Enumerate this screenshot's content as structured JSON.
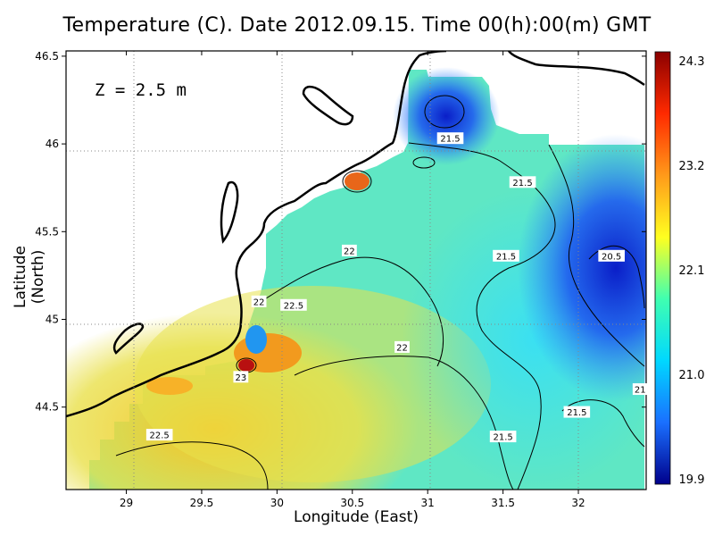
{
  "title": "Temperature (C). Date 2012.09.15. Time 00(h):00(m) GMT",
  "x_axis": {
    "label": "Longitude (East)",
    "ticks": [
      "29",
      "29.5",
      "30",
      "30.5",
      "31",
      "31.5",
      "32"
    ],
    "range": [
      28.6,
      32.45
    ]
  },
  "y_axis": {
    "label": "Latitude (North)",
    "ticks": [
      "44.5",
      "45",
      "45.5",
      "46",
      "46.5"
    ],
    "range": [
      44.03,
      46.53
    ]
  },
  "annotation": "Z = 2.5 m",
  "colorbar": {
    "labels": [
      "24.3",
      "23.2",
      "22.1",
      "21.0",
      "19.9"
    ],
    "min": 19.9,
    "max": 24.3,
    "colors": [
      "#8b0000",
      "#ff2a00",
      "#ff9a1a",
      "#ffff20",
      "#40ffb0",
      "#00d8ff",
      "#1a70ff",
      "#00008b"
    ]
  },
  "contour_labels": [
    {
      "text": "21.5",
      "lon": 31.15,
      "lat": 46.03
    },
    {
      "text": "21.5",
      "lon": 31.63,
      "lat": 45.78
    },
    {
      "text": "21.5",
      "lon": 31.52,
      "lat": 45.36
    },
    {
      "text": "20.5",
      "lon": 32.22,
      "lat": 45.36
    },
    {
      "text": "22",
      "lon": 30.48,
      "lat": 45.39
    },
    {
      "text": "22",
      "lon": 29.88,
      "lat": 45.1
    },
    {
      "text": "22.5",
      "lon": 30.11,
      "lat": 45.08
    },
    {
      "text": "22",
      "lon": 30.83,
      "lat": 44.84
    },
    {
      "text": "23",
      "lon": 29.76,
      "lat": 44.67
    },
    {
      "text": "22.5",
      "lon": 29.22,
      "lat": 44.34
    },
    {
      "text": "21.5",
      "lon": 31.5,
      "lat": 44.33
    },
    {
      "text": "21.5",
      "lon": 31.99,
      "lat": 44.47
    },
    {
      "text": "21",
      "lon": 32.41,
      "lat": 44.6
    }
  ]
}
